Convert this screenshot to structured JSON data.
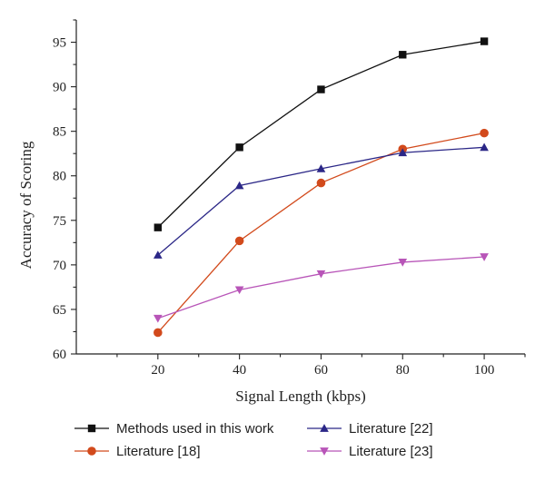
{
  "chart_data": {
    "type": "line",
    "xlabel": "Signal Length (kbps)",
    "ylabel": "Accuracy of Scoring",
    "x": [
      20,
      40,
      60,
      80,
      100
    ],
    "xlim": [
      0,
      110
    ],
    "ylim": [
      60,
      97.5
    ],
    "xticks": [
      "20",
      "40",
      "60",
      "80",
      "100"
    ],
    "yticks": [
      "60",
      "65",
      "70",
      "75",
      "80",
      "85",
      "90",
      "95"
    ],
    "grid": false,
    "legend_position": "bottom",
    "series": [
      {
        "name": "Methods used in this work",
        "values": [
          74.2,
          83.2,
          89.7,
          93.6,
          95.1
        ],
        "color": "#111111",
        "marker": "square"
      },
      {
        "name": "Literature [18]",
        "values": [
          62.4,
          72.7,
          79.2,
          83.0,
          84.8
        ],
        "color": "#d24a1c",
        "marker": "circle"
      },
      {
        "name": "Literature [22]",
        "values": [
          71.1,
          78.9,
          80.8,
          82.6,
          83.2
        ],
        "color": "#2b2787",
        "marker": "triangle-up"
      },
      {
        "name": "Literature [23]",
        "values": [
          64.0,
          67.2,
          69.0,
          70.3,
          70.9
        ],
        "color": "#b855b8",
        "marker": "triangle-down"
      }
    ]
  }
}
